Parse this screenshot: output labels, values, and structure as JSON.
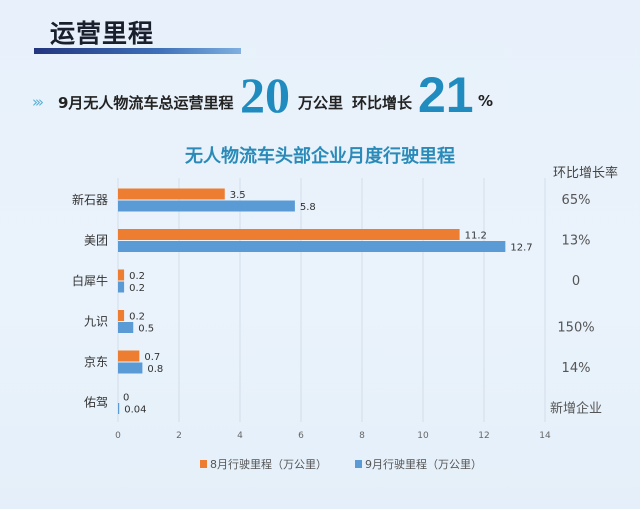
{
  "section_title": "运营里程",
  "summary": {
    "arrows": "›››",
    "text": "9月无人物流车总运营里程",
    "value": "20",
    "unit": "万公里",
    "growth_label": "环比增长",
    "growth_value": "21",
    "growth_unit": "%"
  },
  "rate_header": "环比增长率",
  "colors": {
    "aug": "#ed7d31",
    "sep": "#5b9bd5",
    "accent": "#1f8bbf"
  },
  "chart_data": {
    "type": "bar",
    "orientation": "horizontal",
    "title": "无人物流车头部企业月度行驶里程",
    "categories": [
      "新石器",
      "美团",
      "白犀牛",
      "九识",
      "京东",
      "佑驾"
    ],
    "series": [
      {
        "name": "8月行驶里程（万公里）",
        "values": [
          3.5,
          11.2,
          0.2,
          0.2,
          0.7,
          0
        ],
        "labels": [
          "3.5",
          "11.2",
          "0.2",
          "0.2",
          "0.7",
          "0"
        ]
      },
      {
        "name": "9月行驶里程（万公里）",
        "values": [
          5.8,
          12.7,
          0.2,
          0.5,
          0.8,
          0.04
        ],
        "labels": [
          "5.8",
          "12.7",
          "0.2",
          "0.5",
          "0.8",
          "0.04"
        ]
      }
    ],
    "growth_rates": [
      "65%",
      "13%",
      "0",
      "150%",
      "14%",
      "新增企业"
    ],
    "xlim": [
      0,
      14
    ],
    "xticks": [
      "0",
      "2",
      "4",
      "6",
      "8",
      "10",
      "12",
      "14"
    ],
    "grid": true,
    "legend_position": "bottom"
  }
}
